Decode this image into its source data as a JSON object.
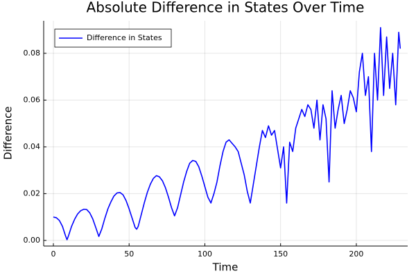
{
  "chart_data": {
    "type": "line",
    "title": "Absolute Difference in States Over Time",
    "xlabel": "Time",
    "ylabel": "Difference",
    "x": [
      0,
      2,
      4,
      6,
      8,
      9,
      10,
      12,
      14,
      16,
      18,
      20,
      22,
      24,
      26,
      28,
      30,
      32,
      34,
      36,
      38,
      40,
      42,
      44,
      46,
      48,
      50,
      52,
      54,
      55,
      56,
      58,
      60,
      62,
      64,
      66,
      68,
      70,
      72,
      74,
      76,
      78,
      80,
      82,
      84,
      86,
      88,
      90,
      92,
      94,
      96,
      98,
      100,
      102,
      104,
      106,
      108,
      110,
      112,
      114,
      116,
      118,
      120,
      122,
      124,
      126,
      128,
      130,
      132,
      134,
      136,
      138,
      140,
      142,
      144,
      146,
      148,
      150,
      152,
      154,
      156,
      158,
      160,
      162,
      164,
      166,
      168,
      170,
      172,
      174,
      176,
      178,
      180,
      182,
      184,
      186,
      188,
      190,
      192,
      194,
      196,
      198,
      200,
      202,
      204,
      206,
      208,
      210,
      212,
      214,
      216,
      218,
      220,
      222,
      224,
      226,
      228,
      229
    ],
    "series": [
      {
        "name": "Difference in States",
        "color": "#0000ff",
        "values": [
          0.01,
          0.0097,
          0.0085,
          0.006,
          0.002,
          0.0003,
          0.002,
          0.006,
          0.009,
          0.0113,
          0.0127,
          0.0133,
          0.0132,
          0.0118,
          0.0092,
          0.0055,
          0.0017,
          0.005,
          0.0095,
          0.0135,
          0.0165,
          0.019,
          0.0203,
          0.0205,
          0.0195,
          0.017,
          0.0135,
          0.0095,
          0.0055,
          0.0048,
          0.006,
          0.011,
          0.016,
          0.0205,
          0.024,
          0.0265,
          0.0277,
          0.0272,
          0.0255,
          0.0225,
          0.0185,
          0.014,
          0.0105,
          0.014,
          0.0195,
          0.025,
          0.0295,
          0.033,
          0.0342,
          0.0338,
          0.0315,
          0.0275,
          0.023,
          0.0185,
          0.016,
          0.02,
          0.025,
          0.032,
          0.038,
          0.042,
          0.043,
          0.0415,
          0.04,
          0.038,
          0.033,
          0.028,
          0.021,
          0.016,
          0.024,
          0.032,
          0.04,
          0.047,
          0.044,
          0.049,
          0.045,
          0.047,
          0.039,
          0.031,
          0.04,
          0.016,
          0.042,
          0.038,
          0.048,
          0.052,
          0.056,
          0.053,
          0.058,
          0.056,
          0.048,
          0.06,
          0.043,
          0.058,
          0.052,
          0.025,
          0.064,
          0.048,
          0.056,
          0.062,
          0.05,
          0.056,
          0.064,
          0.061,
          0.055,
          0.072,
          0.08,
          0.062,
          0.07,
          0.038,
          0.08,
          0.06,
          0.091,
          0.062,
          0.087,
          0.065,
          0.08,
          0.058,
          0.089,
          0.082
        ]
      }
    ],
    "xlim": [
      -6.4,
      233.9
    ],
    "ylim": [
      -0.0024,
      0.0939
    ],
    "xticks": [
      0,
      50,
      100,
      150,
      200
    ],
    "yticks": [
      {
        "value": 0,
        "label": "0.00"
      },
      {
        "value": 0.02,
        "label": "0.02"
      },
      {
        "value": 0.04,
        "label": "0.04"
      },
      {
        "value": 0.06,
        "label": "0.06"
      },
      {
        "value": 0.08,
        "label": "0.08"
      }
    ],
    "grid": true,
    "legend": "top-left"
  }
}
